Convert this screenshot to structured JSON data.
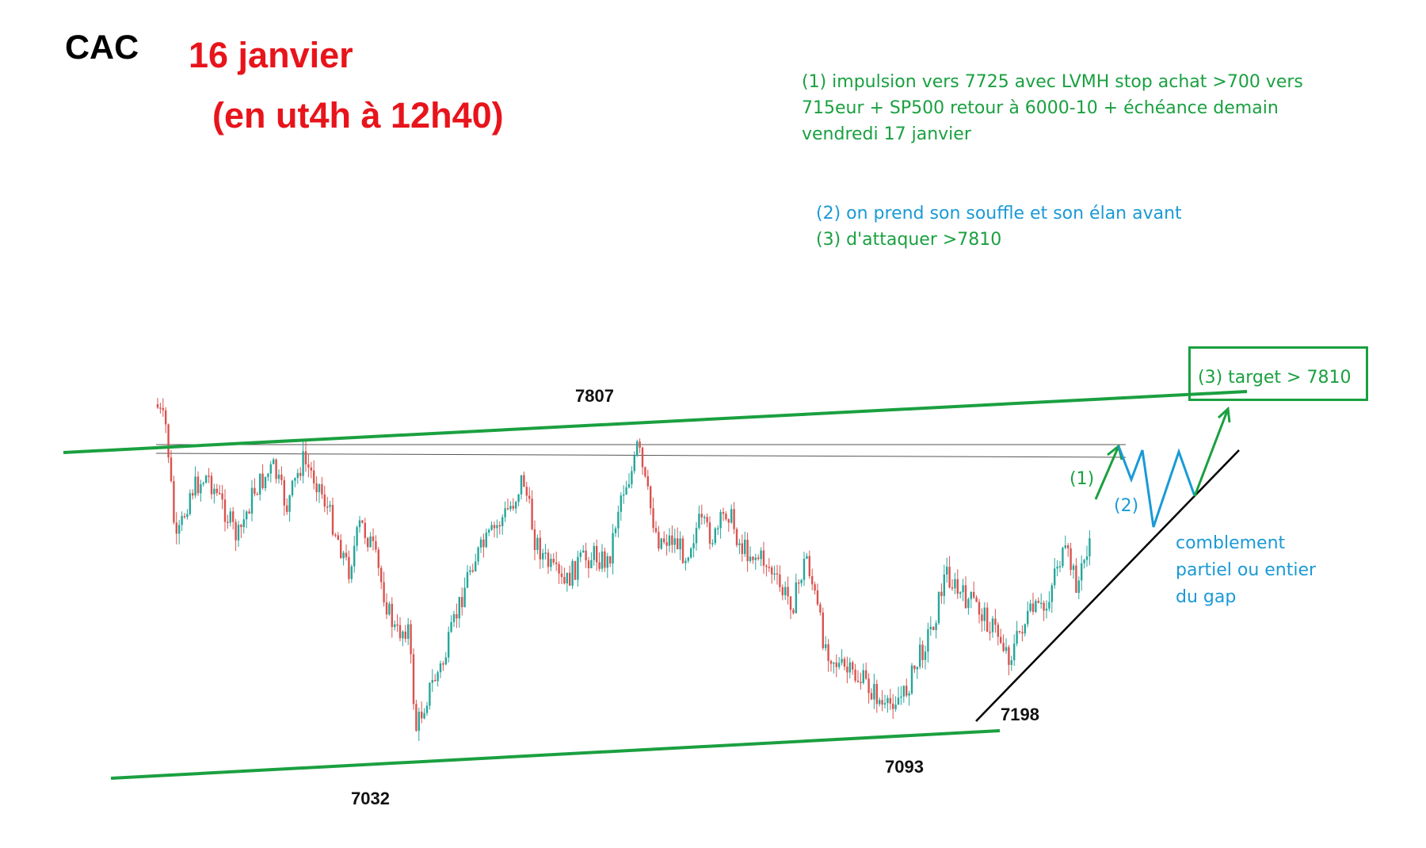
{
  "header": {
    "index_name": "CAC",
    "date": "16 janvier",
    "subtitle": "(en ut4h à 12h40)"
  },
  "notes": {
    "note1_lines": [
      "(1) impulsion vers 7725 avec LVMH stop achat >700 vers",
      "715eur + SP500 retour  à 6000-10 + échéance demain",
      "vendredi 17 janvier"
    ],
    "note2": "(2) on prend son souffle et son élan avant",
    "note3": "(3) d'attaquer >7810"
  },
  "levels": {
    "high": "7807",
    "low1": "7032",
    "low2": "7093",
    "low3": "7198"
  },
  "wave_labels": {
    "w1": "(1)",
    "w2": "(2)",
    "target": "(3) target   > 7810"
  },
  "gap_note_lines": [
    "comblement",
    "partiel ou entier",
    "du gap"
  ],
  "colors": {
    "green": "#1aa040",
    "blue": "#1a9ad6",
    "red": "#e8141b",
    "candle_up": "#26a69a",
    "candle_down": "#d9534f",
    "trendline": "#000000"
  },
  "chart_data": {
    "type": "candlestick",
    "symbol": "CAC",
    "timeframe": "4h",
    "key_levels": [
      {
        "label": "7807",
        "value": 7807,
        "kind": "high"
      },
      {
        "label": "7032",
        "value": 7032,
        "kind": "low"
      },
      {
        "label": "7093",
        "value": 7093,
        "kind": "low"
      },
      {
        "label": "7198",
        "value": 7198,
        "kind": "low"
      }
    ],
    "projection": {
      "wave1_target": 7725,
      "target": 7810
    }
  }
}
